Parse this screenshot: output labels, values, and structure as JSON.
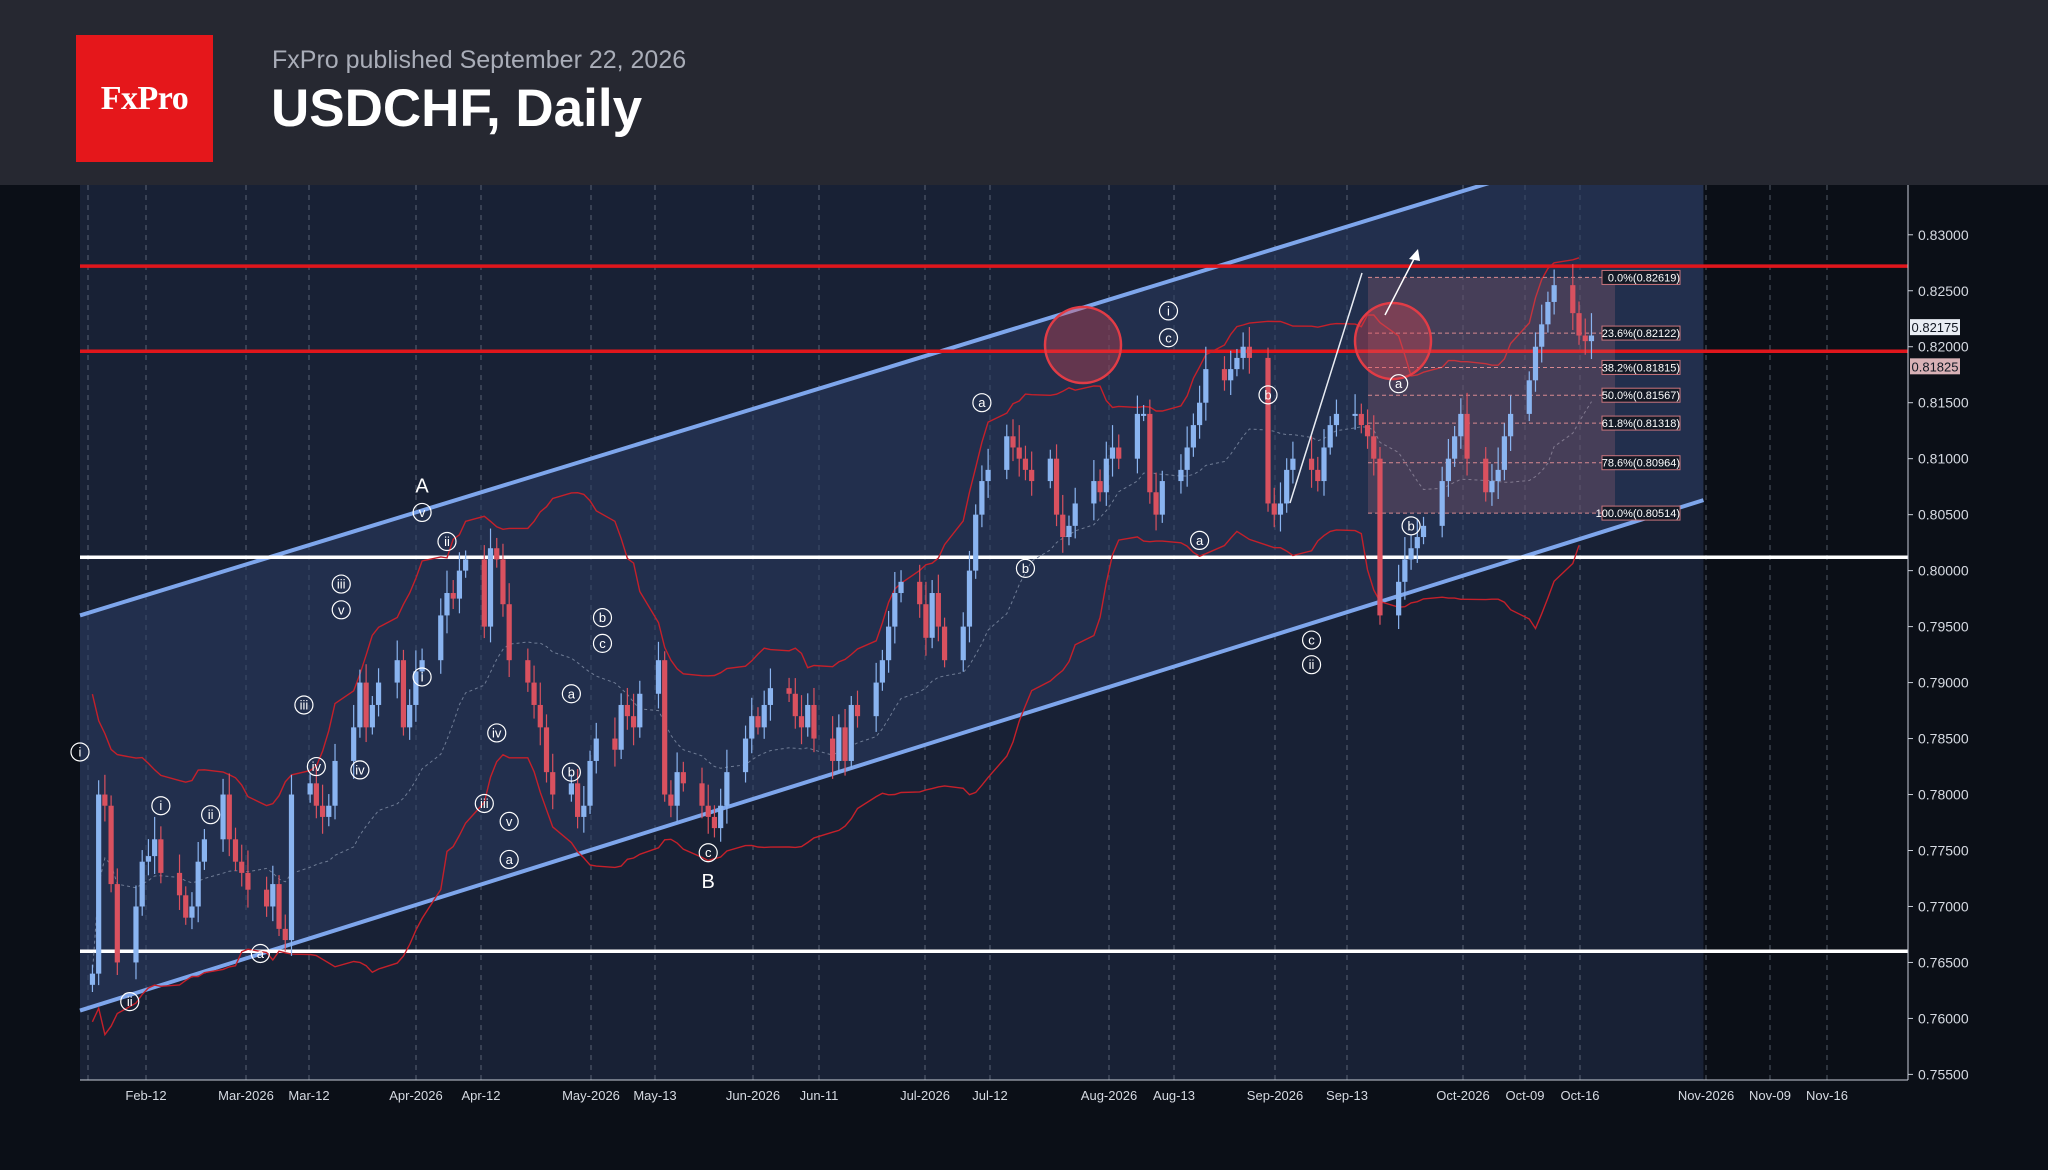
{
  "header": {
    "logo_text": "FxPro",
    "publisher": "FxPro published September 22, 2026",
    "title": "USDCHF, Daily"
  },
  "colors": {
    "background": "#0b0f17",
    "header_bg": "#262831",
    "brand_red": "#e5171b",
    "candle_up": "#8ab4f0",
    "candle_down": "#d9515f",
    "channel": "#7ea6ec",
    "resistance": "#e0161c",
    "support": "#ffffff",
    "bollinger": "#c5202a"
  },
  "chart_data": {
    "type": "candlestick",
    "symbol": "USDCHF",
    "timeframe": "Daily",
    "ylim": [
      0.7545,
      0.834
    ],
    "y_ticks": [
      "0.83000",
      "0.82500",
      "0.82000",
      "0.81500",
      "0.81000",
      "0.80500",
      "0.80000",
      "0.79500",
      "0.79000",
      "0.78500",
      "0.78000",
      "0.77500",
      "0.77000",
      "0.76500",
      "0.76000",
      "0.75500"
    ],
    "x_ticks": [
      "Feb-12",
      "Mar-2026",
      "Mar-12",
      "Apr-2026",
      "Apr-12",
      "May-2026",
      "May-13",
      "Jun-2026",
      "Jun-11",
      "Jul-2026",
      "Jul-12",
      "Aug-2026",
      "Aug-13",
      "Sep-2026",
      "Sep-13",
      "Oct-2026",
      "Oct-09",
      "Oct-16",
      "Nov-2026",
      "Nov-09",
      "Nov-16"
    ],
    "price_badges": [
      "0.82175",
      "0.81825"
    ],
    "horizontal_levels": [
      {
        "value": 0.8272,
        "kind": "resistance"
      },
      {
        "value": 0.8196,
        "kind": "resistance"
      },
      {
        "value": 0.8012,
        "kind": "support"
      },
      {
        "value": 0.766,
        "kind": "support"
      }
    ],
    "channel": {
      "lower": [
        [
          "2026-01-31",
          0.7607
        ],
        [
          "2026-10-19",
          0.8063
        ]
      ],
      "upper": [
        [
          "2026-01-31",
          0.796
        ],
        [
          "2026-10-19",
          0.8405
        ]
      ]
    },
    "fibonacci": [
      {
        "label": "0.0%(0.82619)",
        "value": 0.82619
      },
      {
        "label": "23.6%(0.82122)",
        "value": 0.82122
      },
      {
        "label": "38.2%(0.81815)",
        "value": 0.81815
      },
      {
        "label": "50.0%(0.81567)",
        "value": 0.81567
      },
      {
        "label": "61.8%(0.81318)",
        "value": 0.81318
      },
      {
        "label": "78.6%(0.80964)",
        "value": 0.80964
      },
      {
        "label": "100.0%(0.80514)",
        "value": 0.80514
      }
    ],
    "closes": [
      0.764,
      0.78,
      0.779,
      0.772,
      0.765,
      0.77,
      0.774,
      0.7745,
      0.776,
      0.773,
      0.771,
      0.769,
      0.77,
      0.774,
      0.776,
      0.78,
      0.776,
      0.774,
      0.773,
      0.7715,
      0.77,
      0.772,
      0.768,
      0.767,
      0.78,
      0.781,
      0.779,
      0.778,
      0.779,
      0.783,
      0.786,
      0.79,
      0.786,
      0.788,
      0.79,
      0.792,
      0.786,
      0.788,
      0.791,
      0.792,
      0.796,
      0.798,
      0.7975,
      0.8,
      0.801,
      0.795,
      0.802,
      0.801,
      0.797,
      0.792,
      0.79,
      0.788,
      0.786,
      0.782,
      0.78,
      0.781,
      0.778,
      0.779,
      0.783,
      0.785,
      0.784,
      0.788,
      0.787,
      0.786,
      0.789,
      0.792,
      0.78,
      0.779,
      0.782,
      0.781,
      0.779,
      0.778,
      0.777,
      0.779,
      0.782,
      0.785,
      0.787,
      0.786,
      0.788,
      0.7895,
      0.789,
      0.787,
      0.786,
      0.788,
      0.785,
      0.783,
      0.786,
      0.783,
      0.788,
      0.787,
      0.79,
      0.792,
      0.795,
      0.798,
      0.799,
      0.797,
      0.794,
      0.798,
      0.795,
      0.792,
      0.795,
      0.8,
      0.805,
      0.808,
      0.809,
      0.812,
      0.811,
      0.81,
      0.809,
      0.808,
      0.81,
      0.805,
      0.803,
      0.804,
      0.806,
      0.808,
      0.807,
      0.81,
      0.811,
      0.81,
      0.814,
      0.814,
      0.807,
      0.805,
      0.808,
      0.809,
      0.811,
      0.813,
      0.815,
      0.818,
      0.817,
      0.818,
      0.819,
      0.82,
      0.819,
      0.806,
      0.805,
      0.806,
      0.809,
      0.81,
      0.809,
      0.808,
      0.811,
      0.813,
      0.814,
      0.814,
      0.813,
      0.812,
      0.81,
      0.796,
      0.799,
      0.801,
      0.802,
      0.803,
      0.804,
      0.808,
      0.81,
      0.812,
      0.814,
      0.81,
      0.807,
      0.808,
      0.809,
      0.812,
      0.814,
      0.817,
      0.82,
      0.822,
      0.824,
      0.8255,
      0.823,
      0.821,
      0.8205,
      0.821
    ]
  },
  "wave_labels": [
    {
      "text": "i",
      "date": "2026-01-31",
      "price": 0.7838,
      "circled": true
    },
    {
      "text": "ii",
      "date": "2026-02-08",
      "price": 0.7615,
      "circled": true
    },
    {
      "text": "i",
      "date": "2026-02-13",
      "price": 0.779,
      "circled": true
    },
    {
      "text": "ii",
      "date": "2026-02-21",
      "price": 0.7782,
      "circled": true
    },
    {
      "text": "a",
      "date": "2026-03-01",
      "price": 0.7658,
      "circled": true
    },
    {
      "text": "iii",
      "date": "2026-03-08",
      "price": 0.788,
      "circled": true
    },
    {
      "text": "iv",
      "date": "2026-03-10",
      "price": 0.7825,
      "circled": true
    },
    {
      "text": "iv",
      "date": "2026-03-17",
      "price": 0.7822,
      "circled": true
    },
    {
      "text": "v",
      "date": "2026-03-14",
      "price": 0.7965,
      "circled": true
    },
    {
      "text": "iii",
      "date": "2026-03-14",
      "price": 0.7988,
      "circled": true
    },
    {
      "text": "i",
      "date": "2026-03-27",
      "price": 0.7905,
      "circled": true
    },
    {
      "text": "v",
      "date": "2026-03-27",
      "price": 0.8052,
      "circled": true
    },
    {
      "text": "A",
      "date": "2026-03-27",
      "price": 0.8075,
      "circled": false
    },
    {
      "text": "ii",
      "date": "2026-03-31",
      "price": 0.8026,
      "circled": true
    },
    {
      "text": "iii",
      "date": "2026-04-06",
      "price": 0.7792,
      "circled": true
    },
    {
      "text": "iv",
      "date": "2026-04-08",
      "price": 0.7855,
      "circled": true
    },
    {
      "text": "v",
      "date": "2026-04-10",
      "price": 0.7776,
      "circled": true
    },
    {
      "text": "a",
      "date": "2026-04-10",
      "price": 0.7742,
      "circled": true
    },
    {
      "text": "b",
      "date": "2026-04-20",
      "price": 0.782,
      "circled": true
    },
    {
      "text": "a",
      "date": "2026-04-20",
      "price": 0.789,
      "circled": true
    },
    {
      "text": "c",
      "date": "2026-04-25",
      "price": 0.7935,
      "circled": true
    },
    {
      "text": "b",
      "date": "2026-04-25",
      "price": 0.7958,
      "circled": true
    },
    {
      "text": "c",
      "date": "2026-05-12",
      "price": 0.7748,
      "circled": true
    },
    {
      "text": "B",
      "date": "2026-05-12",
      "price": 0.7722,
      "circled": false
    },
    {
      "text": "a",
      "date": "2026-06-25",
      "price": 0.815,
      "circled": true
    },
    {
      "text": "b",
      "date": "2026-07-02",
      "price": 0.8002,
      "circled": true
    },
    {
      "text": "c",
      "date": "2026-07-25",
      "price": 0.8208,
      "circled": true
    },
    {
      "text": "i",
      "date": "2026-07-25",
      "price": 0.8232,
      "circled": true
    },
    {
      "text": "a",
      "date": "2026-07-30",
      "price": 0.8027,
      "circled": true
    },
    {
      "text": "b",
      "date": "2026-08-10",
      "price": 0.8157,
      "circled": true
    },
    {
      "text": "c",
      "date": "2026-08-17",
      "price": 0.7938,
      "circled": true
    },
    {
      "text": "ii",
      "date": "2026-08-17",
      "price": 0.7916,
      "circled": true
    },
    {
      "text": "a",
      "date": "2026-08-31",
      "price": 0.8167,
      "circled": true
    },
    {
      "text": "b",
      "date": "2026-09-02",
      "price": 0.804,
      "circled": true
    }
  ]
}
